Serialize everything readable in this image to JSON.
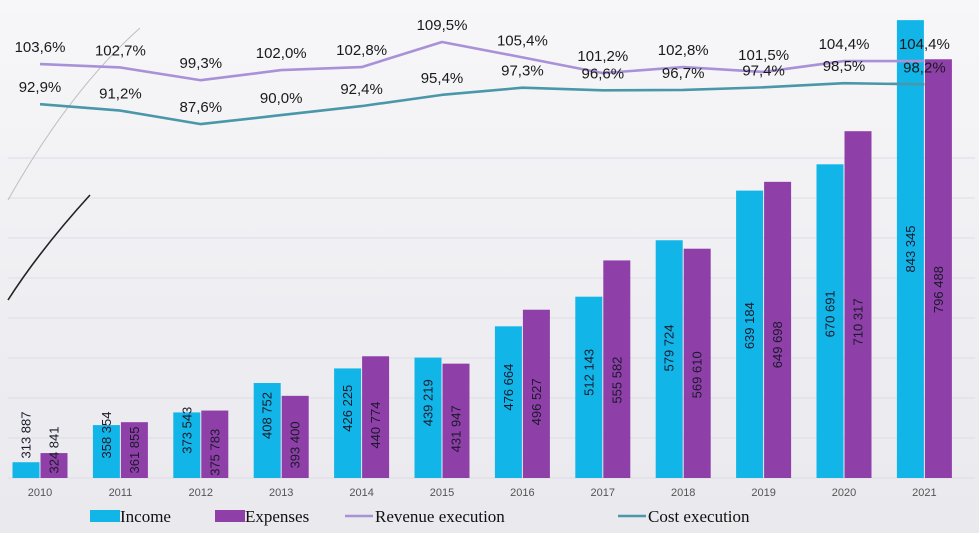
{
  "chart_data": {
    "type": "bar",
    "categories": [
      "2010",
      "2011",
      "2012",
      "2013",
      "2014",
      "2015",
      "2016",
      "2017",
      "2018",
      "2019",
      "2020",
      "2021"
    ],
    "series": [
      {
        "name": "Income",
        "kind": "bar",
        "color": "#12b5e8",
        "values": [
          313887,
          358354,
          373543,
          408752,
          426225,
          439219,
          476664,
          512143,
          579724,
          639184,
          670691,
          843345
        ],
        "labels": [
          "313 887",
          "358 354",
          "373 543",
          "408 752",
          "426 225",
          "439 219",
          "476 664",
          "512 143",
          "579 724",
          "639 184",
          "670 691",
          "843 345"
        ]
      },
      {
        "name": "Expenses",
        "kind": "bar",
        "color": "#8e3fa8",
        "values": [
          324841,
          361855,
          375783,
          393400,
          440774,
          431947,
          496527,
          555582,
          569610,
          649698,
          710317,
          796488
        ],
        "labels": [
          "324 841",
          "361 855",
          "375 783",
          "393 400",
          "440 774",
          "431 947",
          "496 527",
          "555 582",
          "569 610",
          "649 698",
          "710 317",
          "796 488"
        ]
      },
      {
        "name": "Revenue execution",
        "kind": "line",
        "color": "#a991d8",
        "values": [
          103.6,
          102.7,
          99.3,
          102.0,
          102.8,
          109.5,
          105.4,
          101.2,
          102.8,
          101.5,
          104.4,
          104.4
        ],
        "labels": [
          "103,6%",
          "102,7%",
          "99,3%",
          "102,0%",
          "102,8%",
          "109,5%",
          "105,4%",
          "101,2%",
          "102,8%",
          "101,5%",
          "104,4%",
          "104,4%"
        ]
      },
      {
        "name": "Cost execution",
        "kind": "line",
        "color": "#4a97aa",
        "values": [
          92.9,
          91.2,
          87.6,
          90.0,
          92.4,
          95.4,
          97.3,
          96.6,
          96.7,
          97.4,
          98.5,
          98.2
        ],
        "labels": [
          "92,9%",
          "91,2%",
          "87,6%",
          "90,0%",
          "92,4%",
          "95,4%",
          "97,3%",
          "96,6%",
          "96,7%",
          "97,4%",
          "98,5%",
          "98,2%"
        ]
      }
    ],
    "title": "",
    "xlabel": "",
    "ylabel": "",
    "legend_position": "bottom",
    "grid": true
  }
}
